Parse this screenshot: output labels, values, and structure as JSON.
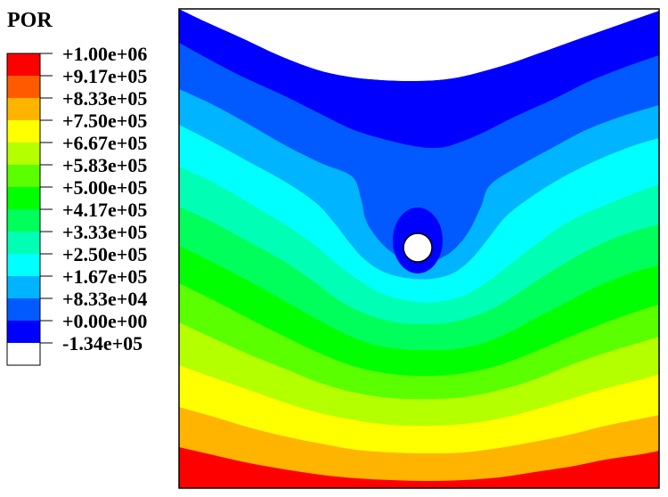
{
  "legend": {
    "title": "POR",
    "levels": [
      {
        "label": "+1.00e+06",
        "color": "#ff0000"
      },
      {
        "label": "+9.17e+05",
        "color": "#ff5a00"
      },
      {
        "label": "+8.33e+05",
        "color": "#ffb400"
      },
      {
        "label": "+7.50e+05",
        "color": "#ffff00"
      },
      {
        "label": "+6.67e+05",
        "color": "#b4ff00"
      },
      {
        "label": "+5.83e+05",
        "color": "#5aff00"
      },
      {
        "label": "+5.00e+05",
        "color": "#00ff00"
      },
      {
        "label": "+4.17e+05",
        "color": "#00ff5a"
      },
      {
        "label": "+3.33e+05",
        "color": "#00ffb4"
      },
      {
        "label": "+2.50e+05",
        "color": "#00ffff"
      },
      {
        "label": "+1.67e+05",
        "color": "#00b4ff"
      },
      {
        "label": "+8.33e+04",
        "color": "#005aff"
      },
      {
        "label": "+0.00e+00",
        "color": "#0000ff"
      },
      {
        "label": "-1.34e+05",
        "color": "#ffffff"
      }
    ]
  },
  "contour": {
    "band_colors_top_to_bottom": [
      "#ffffff",
      "#0000ff",
      "#005aff",
      "#00b4ff",
      "#00ffff",
      "#00ffb4",
      "#00ff5a",
      "#00ff00",
      "#5aff00",
      "#b4ff00",
      "#ffff00",
      "#ffb400",
      "#ff5a00",
      "#ff0000"
    ],
    "hole_color": "#ffffff",
    "outline_color": "#000000"
  }
}
